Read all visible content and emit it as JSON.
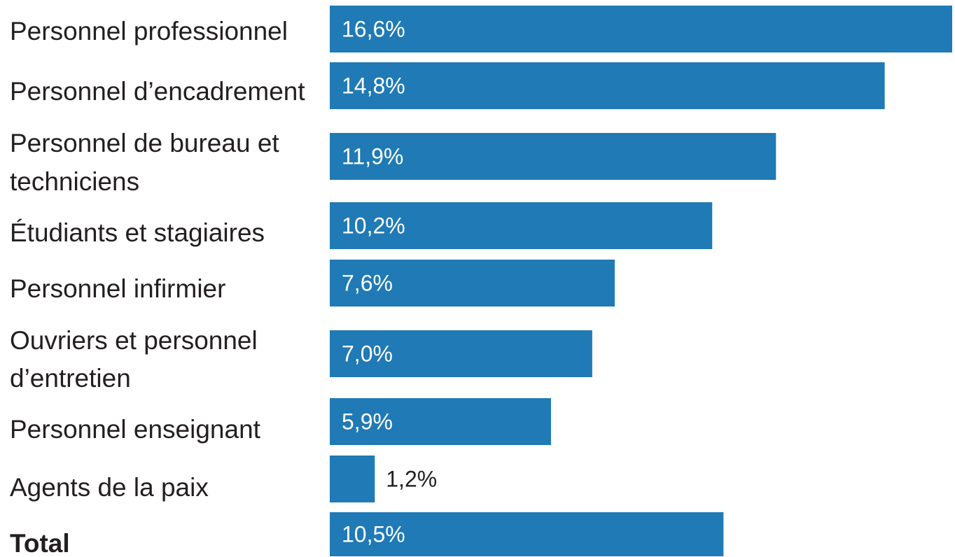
{
  "chart_data": {
    "type": "bar",
    "orientation": "horizontal",
    "title": "",
    "xlabel": "",
    "ylabel": "",
    "grid": false,
    "xlim": [
      0,
      16.6
    ],
    "bar_color": "#1f7ab5",
    "categories": [
      "Personnel professionnel",
      "Personnel d’encadrement",
      "Personnel de bureau et techniciens",
      "Étudiants et stagiaires",
      "Personnel infirmier",
      "Ouvriers et personnel d’entretien",
      "Personnel enseignant",
      "Agents de la paix",
      "Total"
    ],
    "values": [
      16.6,
      14.8,
      11.9,
      10.2,
      7.6,
      7.0,
      5.9,
      1.2,
      10.5
    ],
    "value_labels": [
      "16,6%",
      "14,8%",
      "11,9%",
      "10,2%",
      "7,6%",
      "7,0%",
      "5,9%",
      "1,2%",
      "10,5%"
    ]
  }
}
